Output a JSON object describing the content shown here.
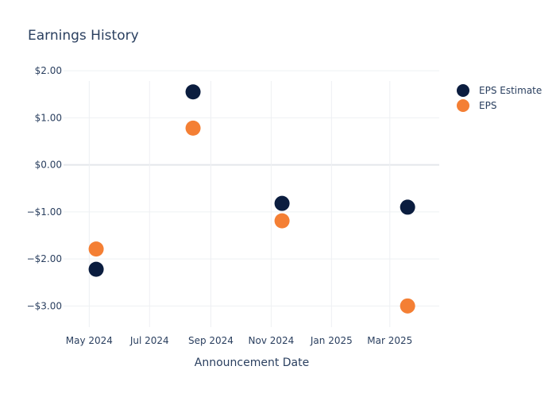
{
  "chart_data": {
    "type": "scatter",
    "title": "Earnings History",
    "xlabel": "Announcement Date",
    "ylabel": "",
    "xlim": [
      "2024-04-05",
      "2025-04-20"
    ],
    "ylim": [
      -3.45,
      2.12
    ],
    "x_ticks": [
      {
        "value": "2024-05-01",
        "label": "May 2024"
      },
      {
        "value": "2024-07-01",
        "label": "Jul 2024"
      },
      {
        "value": "2024-09-01",
        "label": "Sep 2024"
      },
      {
        "value": "2024-11-01",
        "label": "Nov 2024"
      },
      {
        "value": "2025-01-01",
        "label": "Jan 2025"
      },
      {
        "value": "2025-03-01",
        "label": "Mar 2025"
      }
    ],
    "y_ticks": [
      {
        "value": 2,
        "label": "$2.00"
      },
      {
        "value": 1,
        "label": "$1.00"
      },
      {
        "value": 0,
        "label": "$0.00"
      },
      {
        "value": -1,
        "label": "−$1.00"
      },
      {
        "value": -2,
        "label": "−$2.00"
      },
      {
        "value": -3,
        "label": "−$3.00"
      }
    ],
    "grid": true,
    "legend_position": "top-right",
    "series": [
      {
        "name": "EPS Estimate",
        "color": "#0b1d3f",
        "points": [
          {
            "x": "2024-05-08",
            "y": -2.22
          },
          {
            "x": "2024-08-14",
            "y": 1.55
          },
          {
            "x": "2024-11-12",
            "y": -0.82
          },
          {
            "x": "2025-03-19",
            "y": -0.9
          }
        ]
      },
      {
        "name": "EPS",
        "color": "#f47f34",
        "points": [
          {
            "x": "2024-05-08",
            "y": -1.79
          },
          {
            "x": "2024-08-14",
            "y": 0.78
          },
          {
            "x": "2024-11-12",
            "y": -1.19
          },
          {
            "x": "2025-03-19",
            "y": -3.0
          }
        ]
      }
    ]
  }
}
